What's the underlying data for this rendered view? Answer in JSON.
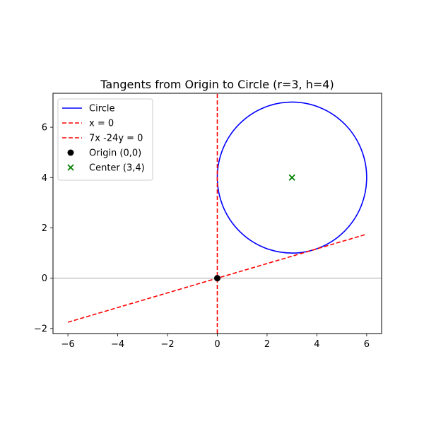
{
  "chart_data": {
    "type": "line",
    "title": "Tangents from Origin to Circle (r=3, h=4)",
    "xlabel": "",
    "ylabel": "",
    "xlim": [
      -6.6,
      6.6
    ],
    "ylim": [
      -2.2,
      7.35
    ],
    "xticks": [
      -6,
      -4,
      -2,
      0,
      2,
      4,
      6
    ],
    "yticks": [
      -2,
      0,
      2,
      4,
      6
    ],
    "xtick_labels": [
      "−6",
      "−4",
      "−2",
      "0",
      "2",
      "4",
      "6"
    ],
    "ytick_labels": [
      "−2",
      "0",
      "2",
      "4",
      "6"
    ],
    "grid": false,
    "legend_position": "top-left",
    "reference_lines": [
      {
        "axis": "y",
        "value": 0,
        "color": "#999999"
      }
    ],
    "series": [
      {
        "name": "Circle",
        "kind": "circle",
        "center": [
          3,
          4
        ],
        "radius": 3,
        "color": "#0000ff",
        "style": "solid"
      },
      {
        "name": "x = 0",
        "kind": "line",
        "points": [
          [
            0,
            -2.2
          ],
          [
            0,
            7.35
          ]
        ],
        "color": "#ff0000",
        "style": "dashed"
      },
      {
        "name": "7x -24y = 0",
        "kind": "line",
        "points": [
          [
            -6,
            -1.75
          ],
          [
            6,
            1.75
          ]
        ],
        "color": "#ff0000",
        "style": "dashed"
      },
      {
        "name": "Origin (0,0)",
        "kind": "scatter",
        "marker": "circle",
        "points": [
          [
            0,
            0
          ]
        ],
        "color": "#000000"
      },
      {
        "name": "Center (3,4)",
        "kind": "scatter",
        "marker": "x",
        "points": [
          [
            3,
            4
          ]
        ],
        "color": "#008000"
      }
    ]
  }
}
